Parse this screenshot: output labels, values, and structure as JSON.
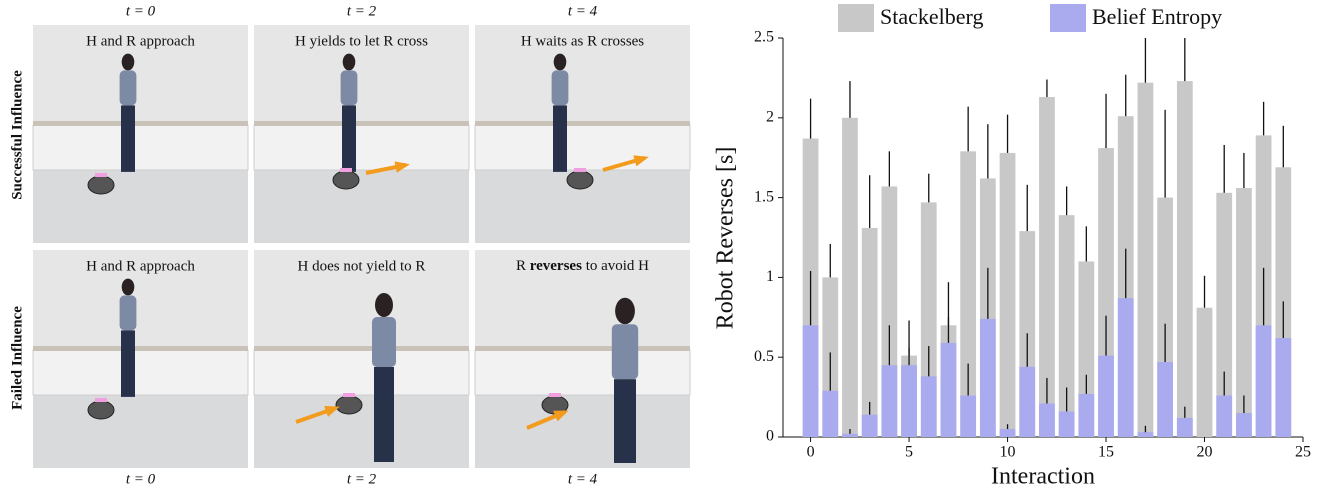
{
  "panels": [
    {
      "caption": "H and R approach",
      "time": "t = 0"
    },
    {
      "caption": "H yields to let R cross",
      "time": "t = 2"
    },
    {
      "caption": "H waits as R crosses",
      "time": "t = 4"
    },
    {
      "caption": "H and R approach",
      "time": "t = 0"
    },
    {
      "caption": "H does not yield to R",
      "time": "t = 2"
    },
    {
      "caption": [
        "R ",
        "reverses",
        " to avoid H"
      ],
      "time": "t = 4"
    }
  ],
  "rows": [
    "Successful Influence",
    "Failed Influence"
  ],
  "chart_data": {
    "type": "bar",
    "xlabel": "Interaction",
    "ylabel": "Robot Reverses [s]",
    "x": [
      0,
      1,
      2,
      3,
      4,
      5,
      6,
      7,
      8,
      9,
      10,
      11,
      12,
      13,
      14,
      15,
      16,
      17,
      18,
      19,
      20,
      21,
      22,
      23,
      24
    ],
    "series": [
      {
        "name": "Stackelberg",
        "color": "#c8c8c8",
        "values": [
          1.87,
          1.0,
          2.0,
          1.31,
          1.57,
          0.51,
          1.47,
          0.7,
          1.79,
          1.62,
          1.78,
          1.29,
          2.13,
          1.39,
          1.1,
          1.81,
          2.01,
          2.22,
          1.5,
          2.23,
          0.81,
          1.53,
          1.56,
          1.89,
          1.69
        ],
        "errors": [
          0.25,
          0.21,
          0.23,
          0.33,
          0.22,
          0.05,
          0.18,
          0.05,
          0.28,
          0.34,
          0.24,
          0.29,
          0.11,
          0.18,
          0.22,
          0.34,
          0.26,
          0.28,
          0.55,
          0.27,
          0.2,
          0.3,
          0.22,
          0.21,
          0.26
        ]
      },
      {
        "name": "Belief Entropy",
        "color": "#aaaaee",
        "values": [
          0.7,
          0.29,
          0.02,
          0.14,
          0.45,
          0.45,
          0.38,
          0.59,
          0.26,
          0.74,
          0.05,
          0.44,
          0.21,
          0.16,
          0.27,
          0.51,
          0.87,
          0.03,
          0.47,
          0.12,
          0,
          0.26,
          0.15,
          0.7,
          0.62
        ],
        "errors": [
          0.34,
          0.24,
          0.03,
          0.08,
          0.25,
          0.28,
          0.19,
          0.38,
          0.2,
          0.32,
          0.03,
          0.21,
          0.16,
          0.15,
          0.12,
          0.25,
          0.31,
          0.04,
          0.24,
          0.07,
          0,
          0.15,
          0.11,
          0.36,
          0.23
        ]
      }
    ],
    "xlim": [
      -1.4,
      25
    ],
    "xticks": [
      0,
      5,
      10,
      15,
      20,
      25
    ],
    "ylim": [
      0,
      2.5
    ],
    "yticks": [
      0,
      0.5,
      1,
      1.5,
      2,
      2.5
    ],
    "legend": "top"
  }
}
